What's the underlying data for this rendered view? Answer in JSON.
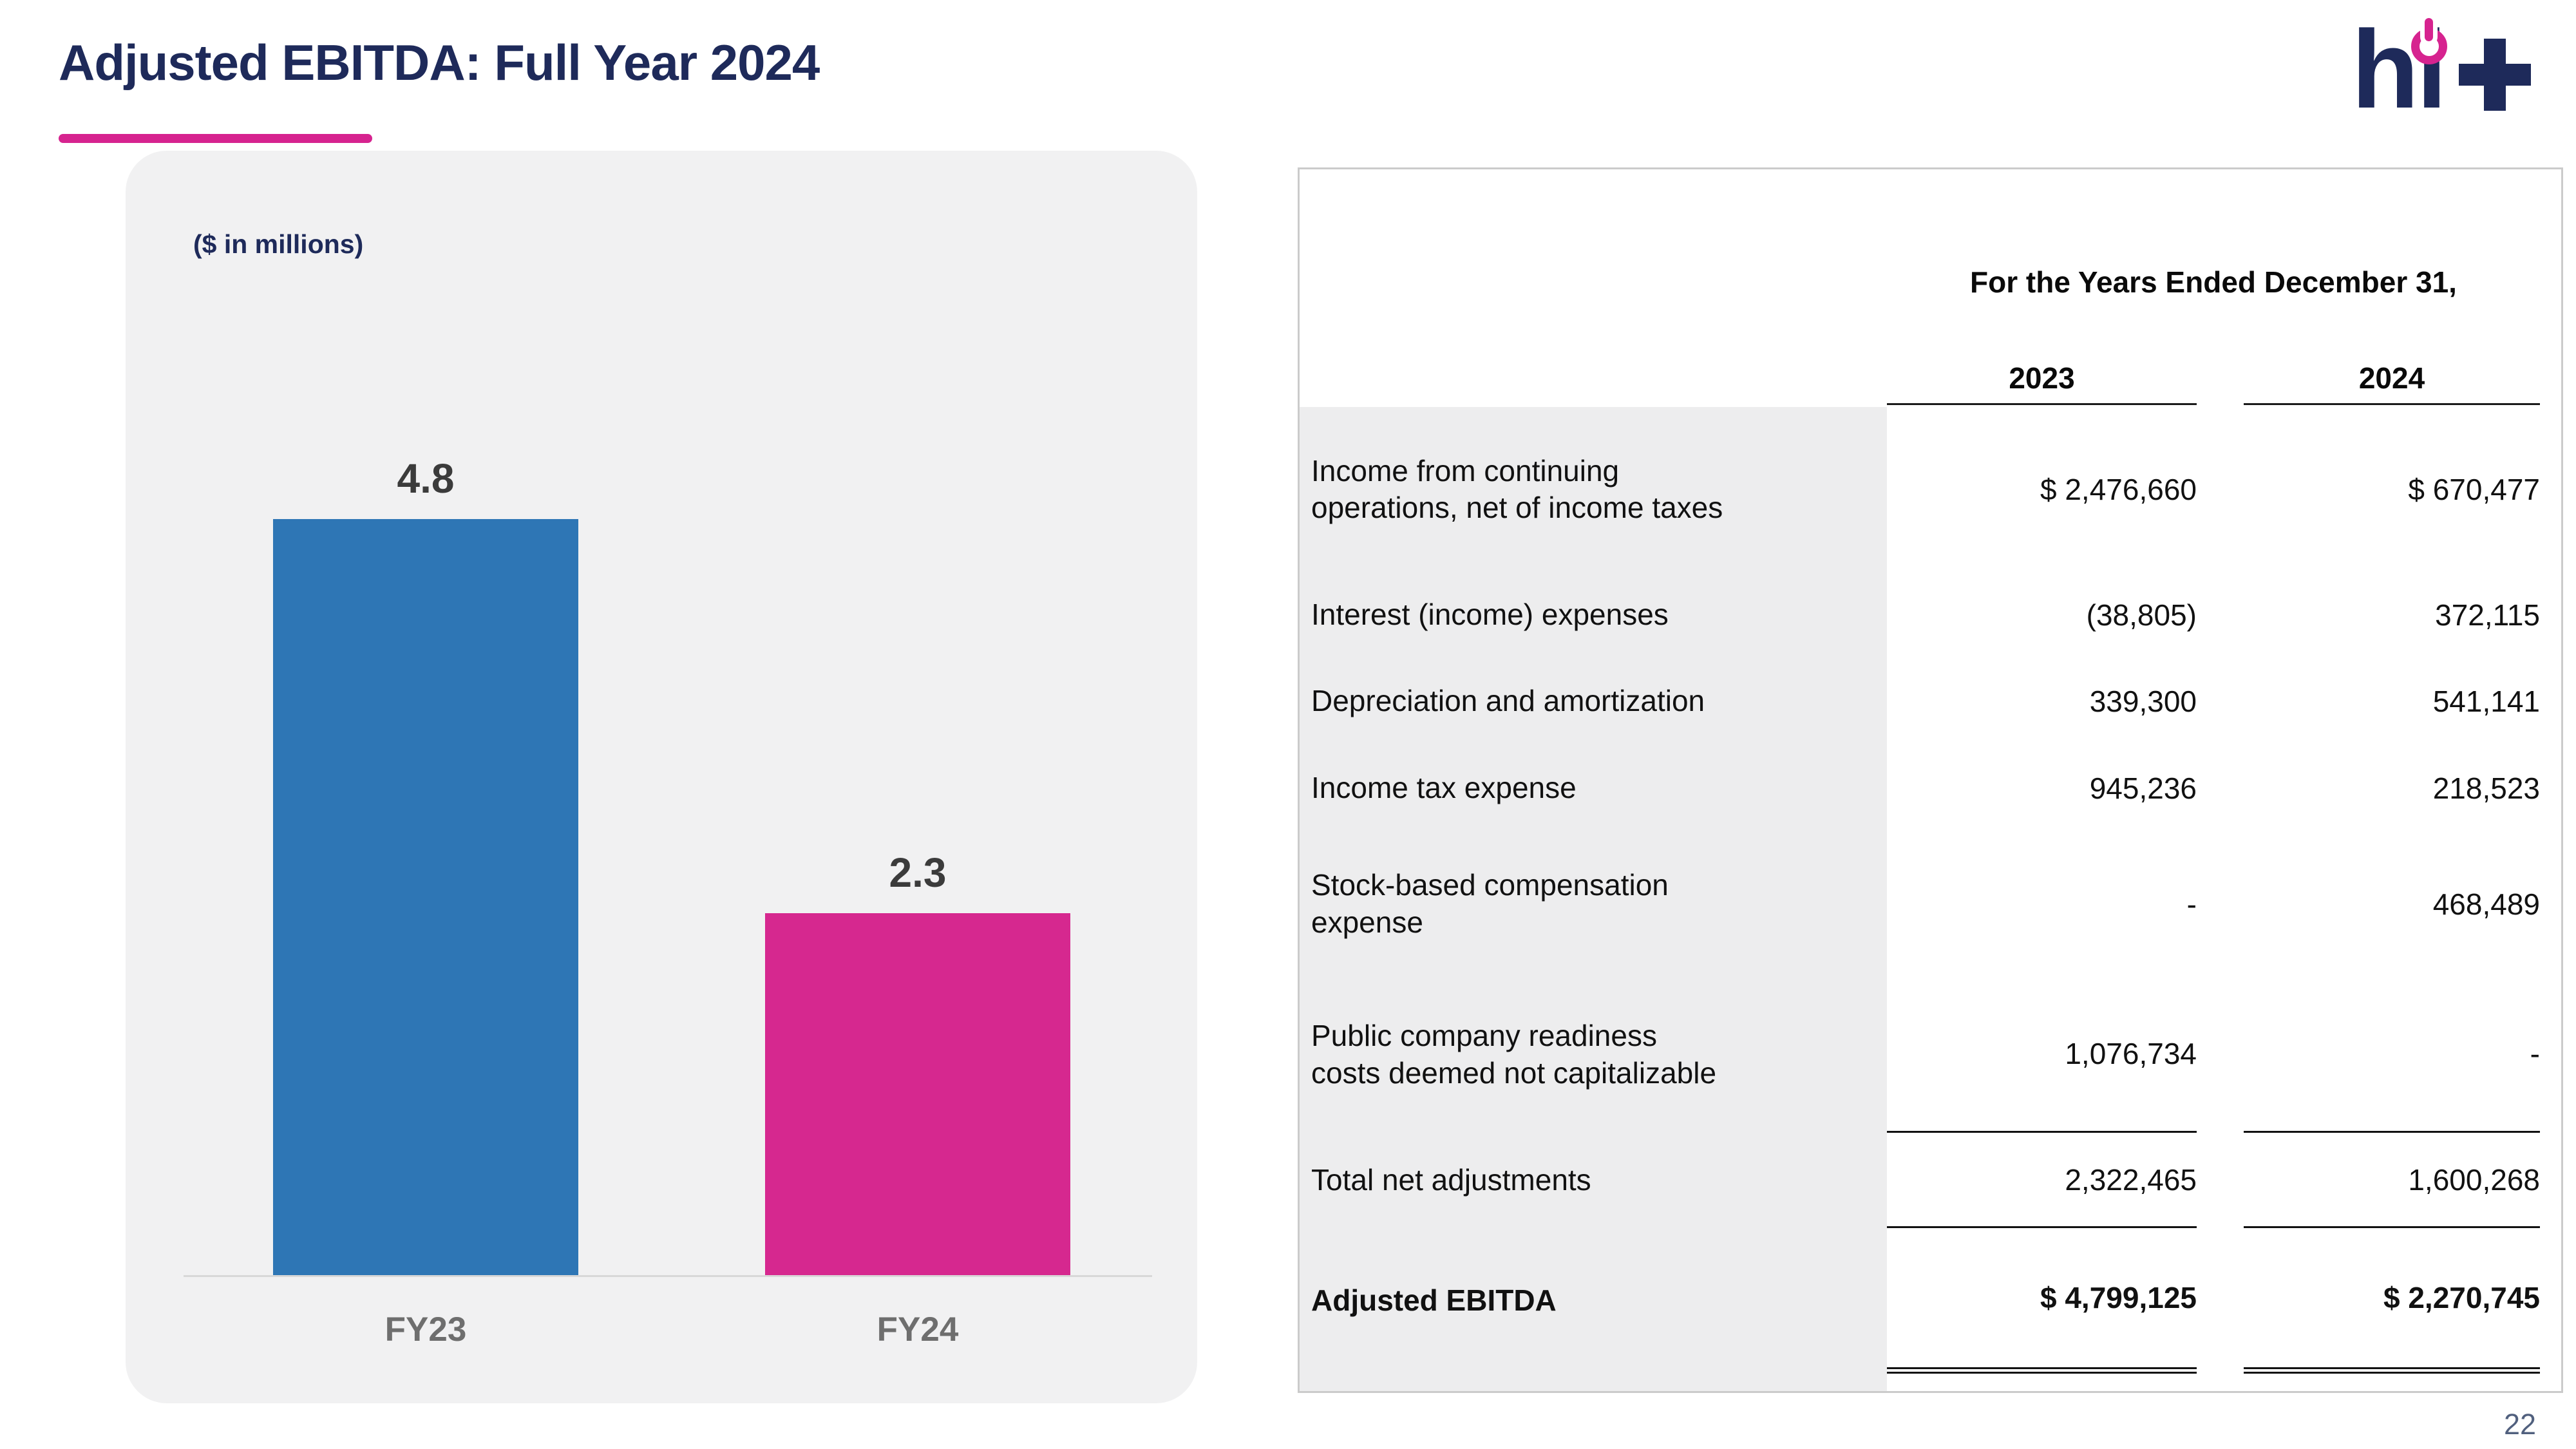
{
  "slide": {
    "title": "Adjusted EBITDA: Full Year 2024",
    "page_number": "22",
    "accent_color": "#d6238f",
    "title_color": "#1e2a5a"
  },
  "logo": {
    "text": "hi",
    "plus_icon": "plus",
    "power_icon": "power",
    "color": "#1e2a5a",
    "accent": "#d6238f"
  },
  "chart_data": [
    {
      "type": "bar",
      "title": "",
      "units_label": "($ in millions)",
      "categories": [
        "FY23",
        "FY24"
      ],
      "values": [
        4.8,
        2.3
      ],
      "data_labels": [
        "4.8",
        "2.3"
      ],
      "bar_colors": [
        "#2e76b5",
        "#d6288f"
      ],
      "xlabel": "",
      "ylabel": "($ in millions)",
      "ylim": [
        0,
        4.8
      ],
      "grid": false,
      "legend": false
    },
    {
      "type": "table",
      "header_span": "For the Years Ended December 31,",
      "columns": [
        "2023",
        "2024"
      ],
      "rows": [
        {
          "label": "Income from continuing\noperations, net of income taxes",
          "y2023": "$ 2,476,660",
          "y2024": "$ 670,477"
        },
        {
          "label": "Interest (income) expenses",
          "y2023": "(38,805)",
          "y2024": "372,115"
        },
        {
          "label": "Depreciation and amortization",
          "y2023": "339,300",
          "y2024": "541,141"
        },
        {
          "label": "Income tax expense",
          "y2023": "945,236",
          "y2024": "218,523"
        },
        {
          "label": "Stock-based compensation\nexpense",
          "y2023": "-",
          "y2024": "468,489"
        },
        {
          "label": "Public company readiness\ncosts deemed not capitalizable",
          "y2023": "1,076,734",
          "y2024": "-"
        },
        {
          "label": "Total net adjustments",
          "y2023": "2,322,465",
          "y2024": "1,600,268"
        },
        {
          "label": "Adjusted EBITDA",
          "y2023": "$ 4,799,125",
          "y2024": "$ 2,270,745"
        }
      ]
    }
  ]
}
